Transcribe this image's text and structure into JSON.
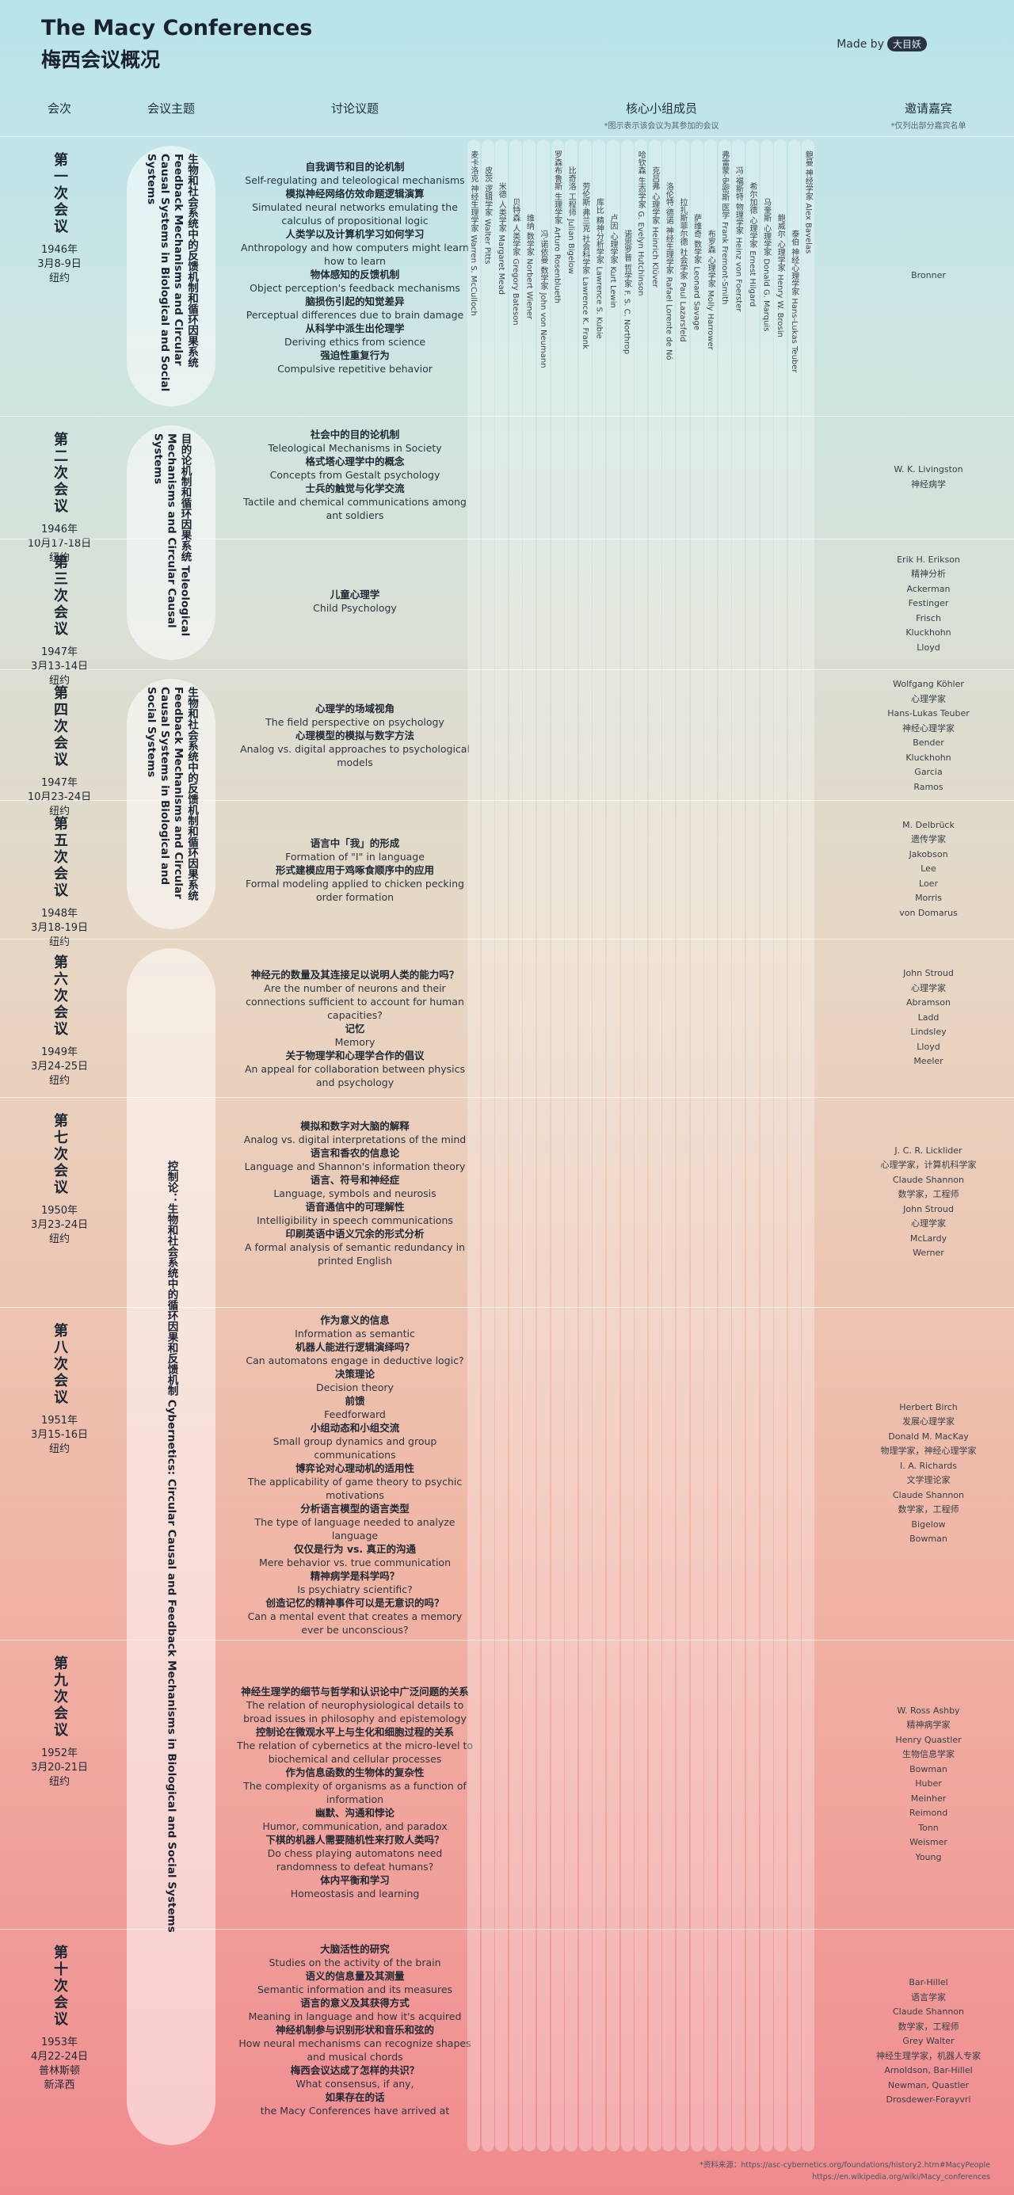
{
  "page": {
    "title_en": "The Macy Conferences",
    "title_zh": "梅西会议概况",
    "made_by": "Made by",
    "logo": "大目妖"
  },
  "headers": {
    "session": "会次",
    "theme": "会议主题",
    "topics": "讨论议题",
    "core_members": "核心小组成员",
    "core_note": "*图示表示该会议为其参加的会议",
    "guests": "邀请嘉宾",
    "guests_note": "*仅列出部分嘉宾名单"
  },
  "themes": [
    {
      "text": "生物和社会系统中的反馈机制和循环因果系统 Feedback Mechanisms and Circular Causal Systems in Biological and Social Systems"
    },
    {
      "text": "目的论机制和循环因果系统 Teleological Mechanisms and Circular Causal Systems"
    },
    {
      "text": "生物和社会系统中的反馈机制和循环因果系统 Feedback Mechanisms and Circular Causal Systems in Biological and Social Systems"
    },
    {
      "text": "控制论：生物和社会系统中的循环因果和反馈机制 Cybernetics: Circular Causal and Feedback Mechanisms in Biological and Social Systems"
    }
  ],
  "conferences": [
    {
      "num": "第一次会议",
      "date": "1946年\n3月8-9日\n纽约",
      "topics": [
        {
          "zh": "自我调节和目的论机制",
          "en": "Self-regulating and teleological mechanisms"
        },
        {
          "zh": "模拟神经网络仿效命题逻辑演算",
          "en": "Simulated neural networks emulating the calculus of propositional logic"
        },
        {
          "zh": "人类学以及计算机学习如何学习",
          "en": "Anthropology and how computers might learn how to learn"
        },
        {
          "zh": "物体感知的反馈机制",
          "en": "Object perception's feedback mechanisms"
        },
        {
          "zh": "脑损伤引起的知觉差异",
          "en": "Perceptual differences due to brain damage"
        },
        {
          "zh": "从科学中派生出伦理学",
          "en": "Deriving ethics from science"
        },
        {
          "zh": "强迫性重复行为",
          "en": "Compulsive repetitive behavior"
        }
      ],
      "guests": [
        "Bronner"
      ]
    },
    {
      "num": "第二次会议",
      "date": "1946年\n10月17-18日\n纽约",
      "topics": [
        {
          "zh": "社会中的目的论机制",
          "en": "Teleological Mechanisms in Society"
        },
        {
          "zh": "格式塔心理学中的概念",
          "en": "Concepts from Gestalt psychology"
        },
        {
          "zh": "士兵的触觉与化学交流",
          "en": "Tactile and chemical communications among ant soldiers"
        }
      ],
      "guests": [
        "W. K. Livingston",
        "神经病学"
      ]
    },
    {
      "num": "第三次会议",
      "date": "1947年\n3月13-14日\n纽约",
      "topics": [
        {
          "zh": "儿童心理学",
          "en": "Child Psychology"
        }
      ],
      "guests": [
        "Erik H. Erikson",
        "精神分析",
        "Ackerman",
        "Festinger",
        "Frisch",
        "Kluckhohn",
        "Lloyd"
      ]
    },
    {
      "num": "第四次会议",
      "date": "1947年\n10月23-24日\n纽约",
      "topics": [
        {
          "zh": "心理学的场域视角",
          "en": "The field perspective on psychology"
        },
        {
          "zh": "心理模型的模拟与数字方法",
          "en": "Analog vs. digital approaches to psychological models"
        }
      ],
      "guests": [
        "Wolfgang Köhler",
        "心理学家",
        "Hans-Lukas Teuber",
        "神经心理学家",
        "Bender",
        "Kluckhohn",
        "Garcia",
        "Ramos"
      ]
    },
    {
      "num": "第五次会议",
      "date": "1948年\n3月18-19日\n纽约",
      "topics": [
        {
          "zh": "语言中「我」的形成",
          "en": "Formation of \"I\" in language"
        },
        {
          "zh": "形式建模应用于鸡啄食顺序中的应用",
          "en": "Formal modeling applied to chicken pecking order formation"
        }
      ],
      "guests": [
        "M. Delbrück",
        "遗传学家",
        "Jakobson",
        "Lee",
        "Loer",
        "Morris",
        "von Domarus"
      ]
    },
    {
      "num": "第六次会议",
      "date": "1949年\n3月24-25日\n纽约",
      "topics": [
        {
          "zh": "神经元的数量及其连接足以说明人类的能力吗？",
          "en": "Are the number of neurons and their connections sufficient to account for human capacities?"
        },
        {
          "zh": "记忆",
          "en": "Memory"
        },
        {
          "zh": "关于物理学和心理学合作的倡议",
          "en": "An appeal for collaboration between physics and psychology"
        }
      ],
      "guests": [
        "John Stroud",
        "心理学家",
        "Abramson",
        "Ladd",
        "Lindsley",
        "Lloyd",
        "Meeler"
      ]
    },
    {
      "num": "第七次会议",
      "date": "1950年\n3月23-24日\n纽约",
      "topics": [
        {
          "zh": "模拟和数字对大脑的解释",
          "en": "Analog vs. digital interpretations of the mind"
        },
        {
          "zh": "语言和香农的信息论",
          "en": "Language and Shannon's information theory"
        },
        {
          "zh": "语言、符号和神经症",
          "en": "Language, symbols and neurosis"
        },
        {
          "zh": "语音通信中的可理解性",
          "en": "Intelligibility in speech communications"
        },
        {
          "zh": "印刷英语中语义冗余的形式分析",
          "en": "A formal analysis of semantic redundancy in printed English"
        }
      ],
      "guests": [
        "J. C. R. Licklider",
        "心理学家，计算机科学家",
        "Claude Shannon",
        "数学家，工程师",
        "John Stroud",
        "心理学家",
        "McLardy",
        "Werner"
      ]
    },
    {
      "num": "第八次会议",
      "date": "1951年\n3月15-16日\n纽约",
      "topics": [
        {
          "zh": "作为意义的信息",
          "en": "Information as semantic"
        },
        {
          "zh": "机器人能进行逻辑演绎吗？",
          "en": "Can automatons engage in deductive logic?"
        },
        {
          "zh": "决策理论",
          "en": "Decision theory"
        },
        {
          "zh": "前馈",
          "en": "Feedforward"
        },
        {
          "zh": "小组动态和小组交流",
          "en": "Small group dynamics and group communications"
        },
        {
          "zh": "博弈论对心理动机的适用性",
          "en": "The applicability of game theory to psychic motivations"
        },
        {
          "zh": "分析语言模型的语言类型",
          "en": "The type of language needed to analyze language"
        },
        {
          "zh": "仅仅是行为 vs. 真正的沟通",
          "en": "Mere behavior vs. true communication"
        },
        {
          "zh": "精神病学是科学吗？",
          "en": "Is psychiatry scientific?"
        },
        {
          "zh": "创造记忆的精神事件可以是无意识的吗？",
          "en": "Can a mental event that creates a memory ever be unconscious?"
        }
      ],
      "guests": [
        "Herbert Birch",
        "发展心理学家",
        "Donald M. MacKay",
        "物理学家，神经心理学家",
        "I. A. Richards",
        "文学理论家",
        "Claude Shannon",
        "数学家，工程师",
        "Bigelow",
        "Bowman"
      ]
    },
    {
      "num": "第九次会议",
      "date": "1952年\n3月20-21日\n纽约",
      "topics": [
        {
          "zh": "神经生理学的细节与哲学和认识论中广泛问题的关系",
          "en": "The relation of neurophysiological details to broad issues in philosophy and epistemology"
        },
        {
          "zh": "控制论在微观水平上与生化和细胞过程的关系",
          "en": "The relation of cybernetics at the micro-level to biochemical and cellular processes"
        },
        {
          "zh": "作为信息函数的生物体的复杂性",
          "en": "The complexity of organisms as a function of information"
        },
        {
          "zh": "幽默、沟通和悖论",
          "en": "Humor, communication, and paradox"
        },
        {
          "zh": "下棋的机器人需要随机性来打败人类吗？",
          "en": "Do chess playing automatons need randomness to defeat humans?"
        },
        {
          "zh": "体内平衡和学习",
          "en": "Homeostasis and learning"
        }
      ],
      "guests": [
        "W. Ross Ashby",
        "精神病学家",
        "Henry Quastler",
        "生物信息学家",
        "Bowman",
        "Huber",
        "Meinher",
        "Reimond",
        "Tonn",
        "Weismer",
        "Young"
      ]
    },
    {
      "num": "第十次会议",
      "date": "1953年\n4月22-24日\n普林斯顿\n新泽西",
      "topics": [
        {
          "zh": "大脑活性的研究",
          "en": "Studies on the activity of the brain"
        },
        {
          "zh": "语义的信息量及其测量",
          "en": "Semantic information and its measures"
        },
        {
          "zh": "语言的意义及其获得方式",
          "en": "Meaning in language and how it's acquired"
        },
        {
          "zh": "神经机制参与识别形状和音乐和弦的",
          "en": "How neural mechanisms can recognize shapes and musical chords"
        },
        {
          "zh": "梅西会议达成了怎样的共识？",
          "en": "What consensus, if any,"
        },
        {
          "zh": "如果存在的话",
          "en": "the Macy Conferences have arrived at"
        }
      ],
      "guests": [
        "Bar-Hillel",
        "语言学家",
        "Claude Shannon",
        "数学家，工程师",
        "Grey Walter",
        "神经生理学家，机器人专家",
        "Arnoldson, Bar-Hillel",
        "Newman, Quastler",
        "Drosdewer-Forayvri"
      ]
    }
  ],
  "members": [
    "麦卡洛克 神经生理学家 Warren S. McCulloch",
    "皮茨 逻辑学家 Walter Pitts",
    "米德 人类学家 Margaret Mead",
    "贝特森 人类学家 Gregory Bateson",
    "维纳 数学家 Norbert Wiener",
    "冯·诺依曼 数学家 John von Neumann",
    "罗森布鲁斯 生理学家 Arturo Rosenblueth",
    "比奇洛 工程师 Julian Bigelow",
    "劳伦斯·弗兰克 社会科学家 Lawrence K. Frank",
    "库比 精神分析学家 Lawrence S. Kubie",
    "卢因 心理学家 Kurt Lewin",
    "诺思罗普 哲学家 F. S. C. Northrop",
    "哈钦森 生态学家 G. Evelyn Hutchinson",
    "克吕弗 心理学家 Heinrich Klüver",
    "洛伦特·德诺 神经生理学家 Rafael Lorente de Nó",
    "拉扎斯菲尔德 社会学家 Paul Lazarsfeld",
    "萨维奇 数学家 Leonard Savage",
    "布罗森 心理学家 Molly Harrower",
    "弗雷蒙-史密斯 医学 Frank Fremont-Smith",
    "冯·福斯特 物理学家 Heinz von Foerster",
    "希尔加德 心理学家 Ernest Hilgard",
    "马奎斯 心理学家 Donald G. Marquis",
    "鲍威尔 心理学家 Henry W. Brosin",
    "泰伯 神经心理学家 Hans-Lukas Teuber",
    "鲍曼 神经学家 Alex Bavelas"
  ],
  "footer": {
    "line1": "*资料来源：https://asc-cybernetics.org/foundations/history2.htm#MacyPeople",
    "line2": "https://en.wikipedia.org/wiki/Macy_conferences"
  }
}
